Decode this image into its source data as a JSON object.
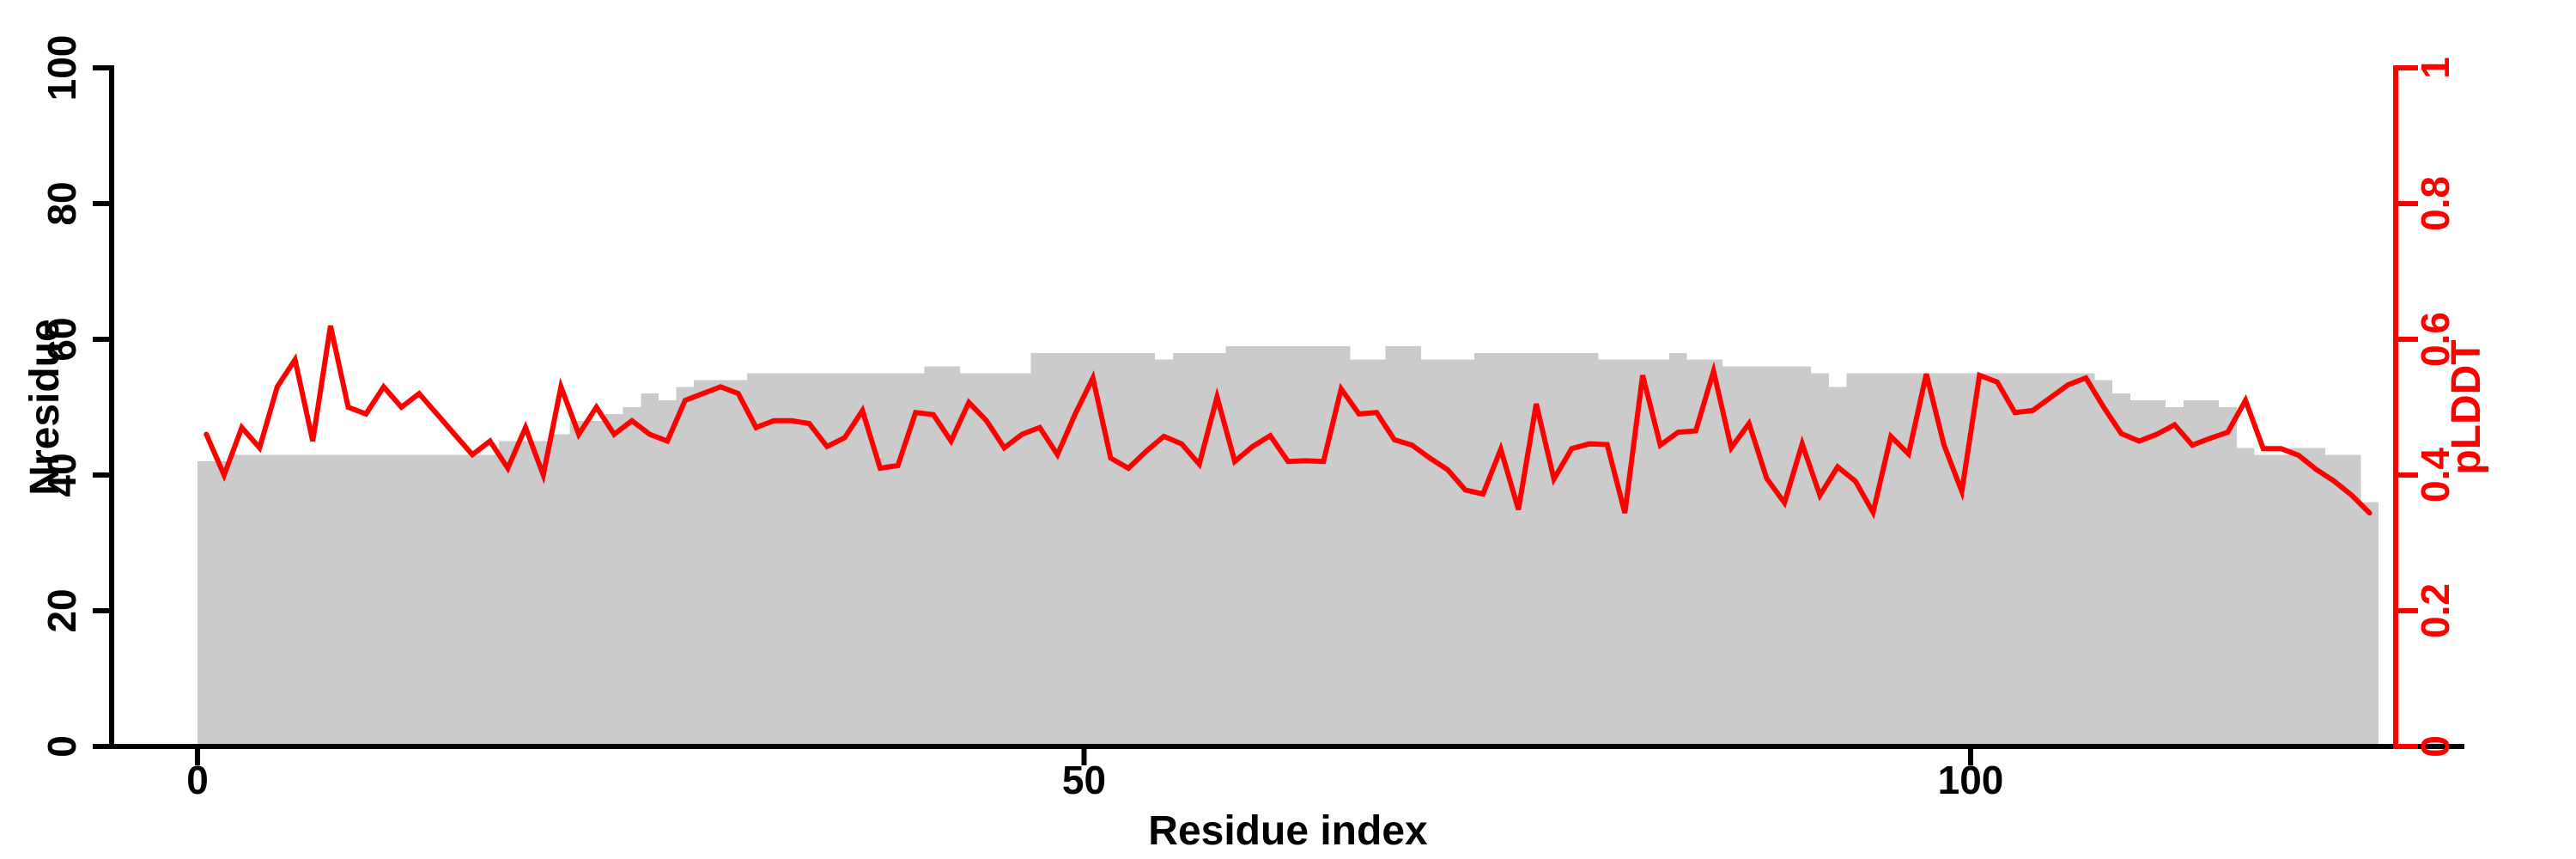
{
  "figure": {
    "xlabel": "Residue index",
    "ylabel_left": "Nresidue",
    "ylabel_right": "pLDDT"
  },
  "chart_data": {
    "type": "bar+line",
    "title": "",
    "xlabel": "Residue index",
    "ylabel_left": "Nresidue",
    "ylabel_right": "pLDDT",
    "x_unit": "residue index",
    "x_start": 1,
    "x_step": 1,
    "n_points": 123,
    "xlim": [
      0,
      124
    ],
    "ylim_left": [
      0,
      100
    ],
    "ylim_right": [
      0,
      1
    ],
    "grid": false,
    "legend": "none",
    "colors": {
      "bar": "#cbcbcb",
      "line": "#ff0000",
      "axis": "#000000",
      "right_axis": "#ff0000"
    },
    "xticks": {
      "values": [
        0,
        50,
        100
      ],
      "labels": [
        "0",
        "50",
        "100"
      ]
    },
    "yticks_left": {
      "values": [
        0,
        20,
        40,
        60,
        80,
        100
      ],
      "labels": [
        "0",
        "20",
        "40",
        "60",
        "80",
        "100"
      ]
    },
    "yticks_right": {
      "values": [
        0,
        0.2,
        0.4,
        0.6,
        0.8,
        1
      ],
      "labels": [
        "0",
        "0.2",
        "0.4",
        "0.6",
        "0.8",
        "1"
      ]
    },
    "series": [
      {
        "name": "Nresidue",
        "type": "bar",
        "axis": "left",
        "color": "#cbcbcb",
        "values": [
          42,
          42,
          43,
          43,
          43,
          43,
          43,
          43,
          43,
          43,
          43,
          43,
          43,
          43,
          43,
          43,
          43,
          45,
          45,
          45,
          46,
          48,
          48,
          49,
          50,
          52,
          51,
          53,
          54,
          54,
          54,
          55,
          55,
          55,
          55,
          55,
          55,
          55,
          55,
          55,
          55,
          56,
          56,
          55,
          55,
          55,
          55,
          58,
          58,
          58,
          58,
          58,
          58,
          58,
          57,
          58,
          58,
          58,
          59,
          59,
          59,
          59,
          59,
          59,
          59,
          57,
          57,
          59,
          59,
          57,
          57,
          57,
          58,
          58,
          58,
          58,
          58,
          58,
          58,
          57,
          57,
          57,
          57,
          58,
          57,
          57,
          56,
          56,
          56,
          56,
          56,
          55,
          53,
          55,
          55,
          55,
          55,
          55,
          55,
          55,
          55,
          55,
          55,
          55,
          55,
          55,
          55,
          54,
          52,
          51,
          51,
          50,
          51,
          51,
          50,
          44,
          43,
          43,
          44,
          44,
          43,
          43,
          36
        ]
      },
      {
        "name": "pLDDT",
        "type": "line",
        "axis": "right",
        "color": "#ff0000",
        "values": [
          0.46,
          0.4,
          0.47,
          0.44,
          0.53,
          0.57,
          0.45,
          0.62,
          0.5,
          0.49,
          0.53,
          0.5,
          0.52,
          0.49,
          0.46,
          0.43,
          0.45,
          0.41,
          0.47,
          0.4,
          0.53,
          0.46,
          0.5,
          0.46,
          0.48,
          0.46,
          0.45,
          0.51,
          0.52,
          0.53,
          0.52,
          0.47,
          0.48,
          0.48,
          0.476,
          0.442,
          0.455,
          0.495,
          0.41,
          0.414,
          0.492,
          0.489,
          0.45,
          0.507,
          0.48,
          0.44,
          0.46,
          0.47,
          0.43,
          0.49,
          0.543,
          0.425,
          0.41,
          0.435,
          0.457,
          0.446,
          0.416,
          0.515,
          0.42,
          0.442,
          0.458,
          0.42,
          0.421,
          0.42,
          0.527,
          0.49,
          0.492,
          0.452,
          0.444,
          0.425,
          0.408,
          0.378,
          0.372,
          0.438,
          0.349,
          0.505,
          0.394,
          0.439,
          0.446,
          0.445,
          0.344,
          0.547,
          0.444,
          0.463,
          0.465,
          0.553,
          0.44,
          0.476,
          0.395,
          0.359,
          0.446,
          0.37,
          0.412,
          0.391,
          0.345,
          0.457,
          0.431,
          0.549,
          0.444,
          0.376,
          0.547,
          0.537,
          0.492,
          0.495,
          0.514,
          0.533,
          0.543,
          0.5,
          0.461,
          0.45,
          0.46,
          0.474,
          0.444,
          0.454,
          0.463,
          0.51,
          0.439,
          0.439,
          0.429,
          0.408,
          0.391,
          0.37,
          0.344
        ]
      }
    ]
  }
}
